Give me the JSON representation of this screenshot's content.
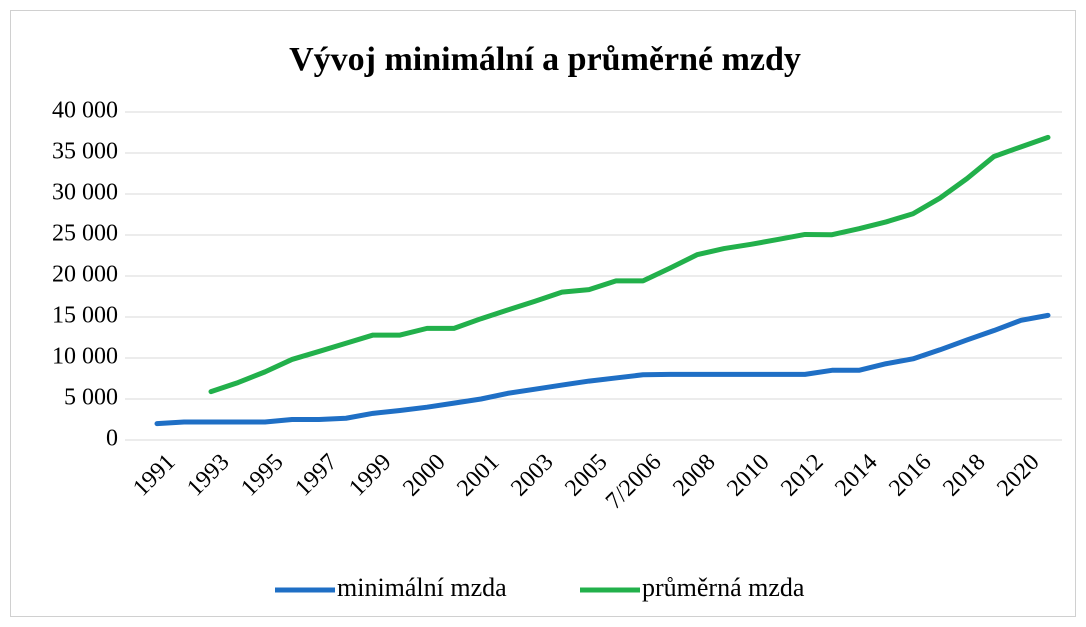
{
  "chart_data": {
    "type": "line",
    "title": "Vývoj minimální a průměrné mzdy",
    "categories": [
      "1991",
      null,
      "1993",
      null,
      "1995",
      null,
      "1997",
      null,
      "1999",
      null,
      "2000",
      null,
      "2001",
      null,
      "2003",
      null,
      "2005",
      null,
      "7/2006",
      null,
      "2008",
      null,
      "2010",
      null,
      "2012",
      null,
      "2014",
      null,
      "2016",
      null,
      "2018",
      null,
      "2020",
      null
    ],
    "series": [
      {
        "name": "minimální mzda",
        "color": "#1f6fc5",
        "values": [
          2000,
          2200,
          2200,
          2200,
          2200,
          2500,
          2500,
          2650,
          3250,
          3600,
          4000,
          4500,
          5000,
          5700,
          6200,
          6700,
          7185,
          7570,
          7955,
          8000,
          8000,
          8000,
          8000,
          8000,
          8000,
          8500,
          8500,
          9300,
          9900,
          11000,
          12200,
          13350,
          14600,
          15200
        ]
      },
      {
        "name": "průměrná mzda",
        "color": "#22b04b",
        "values": [
          null,
          null,
          5904,
          7004,
          8307,
          9825,
          10802,
          11801,
          12797,
          12797,
          13614,
          13614,
          14793,
          15866,
          16917,
          18035,
          18344,
          19400,
          19400,
          20957,
          22592,
          23344,
          23864,
          24455,
          25067,
          25035,
          25768,
          26591,
          27589,
          29504,
          31885,
          34578,
          35750,
          36900
        ]
      }
    ],
    "ylim": [
      0,
      40000
    ],
    "yticks": [
      0,
      {
        "value": 5000,
        "label": "5 000"
      },
      {
        "value": 10000,
        "label": "10 000"
      },
      {
        "value": 15000,
        "label": "15 000"
      },
      {
        "value": 20000,
        "label": "20 000"
      },
      {
        "value": 25000,
        "label": "25 000"
      },
      {
        "value": 30000,
        "label": "30 000"
      },
      {
        "value": 35000,
        "label": "35 000"
      },
      {
        "value": 40000,
        "label": "40 000"
      }
    ],
    "grid": true,
    "legend": "bottom"
  }
}
